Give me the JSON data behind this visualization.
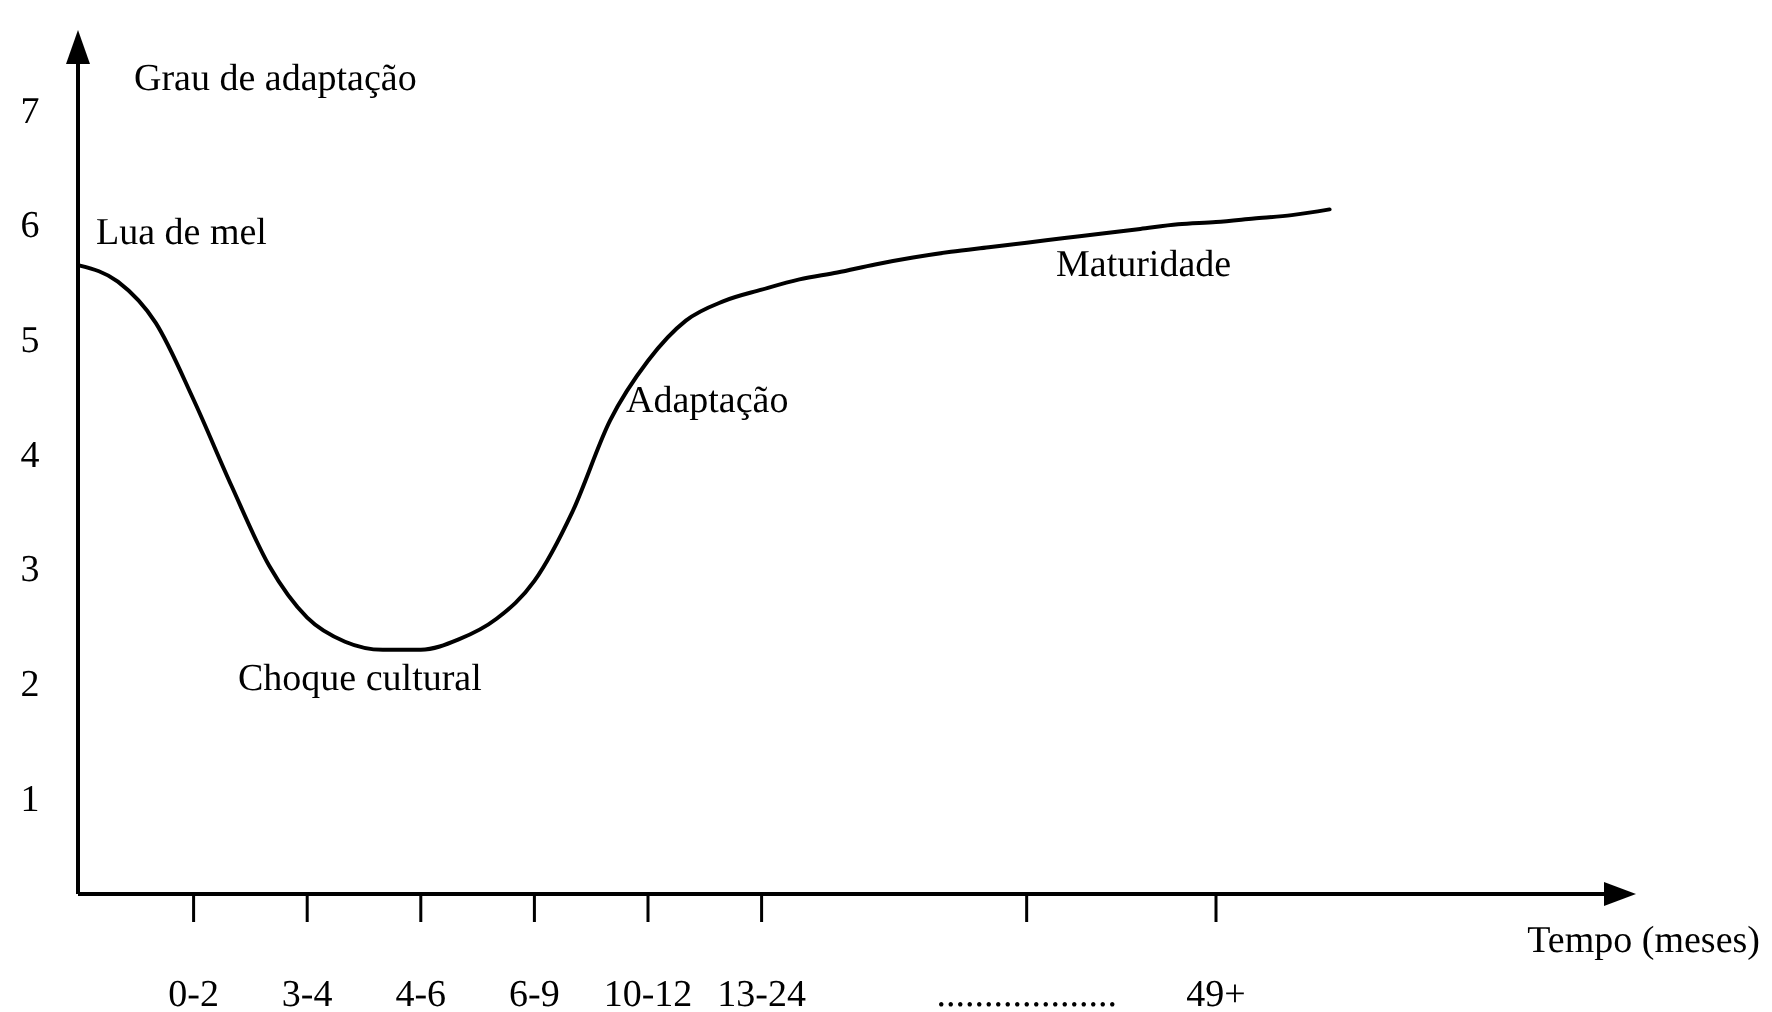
{
  "chart_data": {
    "type": "line",
    "ylabel": "Grau de adaptação",
    "xlabel": "Tempo (meses)",
    "categories": [
      null,
      null,
      null,
      "0-2",
      null,
      null,
      "3-4",
      null,
      null,
      "4-6",
      null,
      null,
      "6-9",
      null,
      null,
      "10-12",
      null,
      null,
      "13-24",
      null,
      null,
      null,
      null,
      null,
      null,
      "...................",
      null,
      null,
      null,
      null,
      "49+",
      null,
      null,
      null
    ],
    "ylim": [
      0.17,
      7.53
    ],
    "yticks": [
      1,
      2,
      3,
      4,
      5,
      6,
      7
    ],
    "grid": false,
    "marker": "none",
    "line_style": "solid",
    "series": [
      {
        "color": "#000000",
        "values": [
          5.65,
          5.51,
          5.15,
          4.48,
          3.73,
          3.03,
          2.58,
          2.37,
          2.3,
          2.3,
          2.39,
          2.57,
          2.9,
          3.5,
          4.3,
          4.82,
          5.17,
          5.34,
          5.44,
          5.53,
          5.59,
          5.66,
          5.72,
          5.77,
          5.81,
          5.85,
          5.89,
          5.93,
          5.97,
          6.01,
          6.03,
          6.06,
          6.09,
          6.14
        ]
      }
    ],
    "annotations": [
      "Lua de mel",
      "Choque cultural",
      "Adaptação",
      "Maturidade"
    ]
  }
}
